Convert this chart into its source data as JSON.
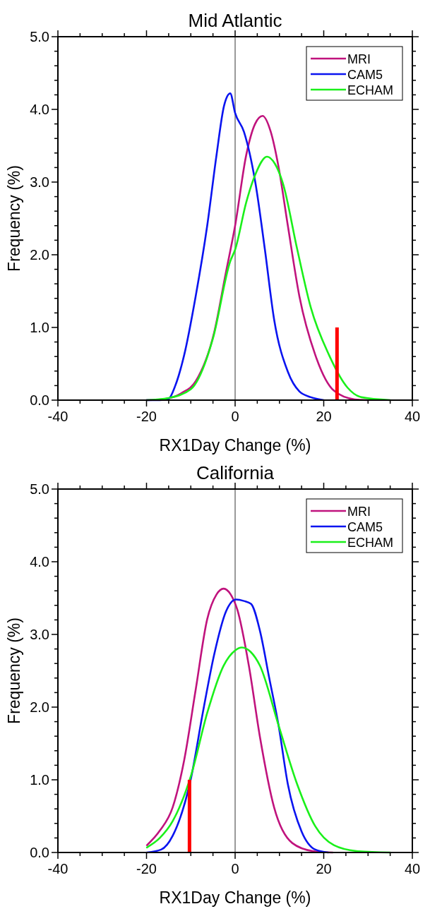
{
  "chart_data": [
    {
      "type": "line",
      "title": "Mid Atlantic",
      "xlabel": "RX1Day Change (%)",
      "ylabel": "Frequency (%)",
      "xlim": [
        -40,
        40
      ],
      "ylim": [
        0,
        5
      ],
      "xticks": [
        -40,
        {
          "value": -35,
          "label": null
        },
        {
          "value": -30,
          "label": null
        },
        {
          "value": -25,
          "label": null
        },
        -20,
        {
          "value": -15,
          "label": null
        },
        {
          "value": -10,
          "label": null
        },
        {
          "value": -5,
          "label": null
        },
        0,
        {
          "value": 5,
          "label": null
        },
        {
          "value": 10,
          "label": null
        },
        {
          "value": 15,
          "label": null
        },
        20,
        {
          "value": 25,
          "label": null
        },
        {
          "value": 30,
          "label": null
        },
        {
          "value": 35,
          "label": null
        },
        40
      ],
      "yticks": [
        {
          "value": 0,
          "label": "0.0"
        },
        {
          "value": 0.2,
          "label": null
        },
        {
          "value": 0.4,
          "label": null
        },
        {
          "value": 0.6,
          "label": null
        },
        {
          "value": 0.8,
          "label": null
        },
        {
          "value": 1,
          "label": "1.0"
        },
        {
          "value": 1.2,
          "label": null
        },
        {
          "value": 1.4,
          "label": null
        },
        {
          "value": 1.6,
          "label": null
        },
        {
          "value": 1.8,
          "label": null
        },
        {
          "value": 2,
          "label": "2.0"
        },
        {
          "value": 2.2,
          "label": null
        },
        {
          "value": 2.4,
          "label": null
        },
        {
          "value": 2.6,
          "label": null
        },
        {
          "value": 2.8,
          "label": null
        },
        {
          "value": 3,
          "label": "3.0"
        },
        {
          "value": 3.2,
          "label": null
        },
        {
          "value": 3.4,
          "label": null
        },
        {
          "value": 3.6,
          "label": null
        },
        {
          "value": 3.8,
          "label": null
        },
        {
          "value": 4,
          "label": "4.0"
        },
        {
          "value": 4.2,
          "label": null
        },
        {
          "value": 4.4,
          "label": null
        },
        {
          "value": 4.6,
          "label": null
        },
        {
          "value": 4.8,
          "label": null
        },
        {
          "value": 5,
          "label": "5.0"
        }
      ],
      "legend": "top right",
      "grid": false,
      "ref_lines": [
        {
          "axis": "x",
          "value": 0,
          "color": "#000000"
        }
      ],
      "series": [
        {
          "name": "MRI",
          "color": "#c0137d",
          "x": [
            -20,
            -15.5,
            -12,
            -8.9,
            -4.7,
            -2.1,
            0,
            2.5,
            4.5,
            6.2,
            8,
            9.8,
            11.9,
            14.5,
            18.1,
            22.3,
            27,
            30
          ],
          "values": [
            0,
            0.02,
            0.1,
            0.26,
            0.94,
            1.75,
            2.4,
            3.37,
            3.8,
            3.91,
            3.7,
            3.21,
            2.4,
            1.43,
            0.62,
            0.13,
            0.01,
            0
          ]
        },
        {
          "name": "CAM5",
          "color": "#0a14f0",
          "x": [
            -20,
            -17,
            -15,
            -13.5,
            -11.5,
            -8.9,
            -6.3,
            -4.2,
            -2.5,
            -1.1,
            0,
            2,
            4.6,
            6.7,
            8.8,
            11.9,
            14.5,
            17.1,
            20
          ],
          "values": [
            0,
            0,
            0.02,
            0.2,
            0.62,
            1.43,
            2.4,
            3.37,
            4.05,
            4.22,
            3.95,
            3.69,
            2.98,
            2.08,
            1.11,
            0.39,
            0.12,
            0.04,
            0
          ]
        },
        {
          "name": "ECHAM",
          "color": "#1af01a",
          "x": [
            -20,
            -15,
            -10,
            -5,
            -1.1,
            0,
            2.5,
            4.6,
            7.2,
            9,
            10.8,
            14,
            17.1,
            21.2,
            25.4,
            28.5,
            35
          ],
          "values": [
            0,
            0.03,
            0.15,
            0.85,
            1.91,
            2.07,
            2.72,
            3.11,
            3.35,
            3.25,
            2.98,
            2.08,
            1.27,
            0.62,
            0.17,
            0.04,
            0
          ]
        },
        {
          "type": "line",
          "color": "#ff0000",
          "x": [
            23,
            23
          ],
          "values": [
            0,
            1
          ]
        }
      ]
    },
    {
      "type": "line",
      "title": "California",
      "xlabel": "RX1Day Change (%)",
      "ylabel": "Frequency (%)",
      "xlim": [
        -40,
        40
      ],
      "ylim": [
        0,
        5
      ],
      "xticks": [
        -40,
        {
          "value": -35,
          "label": null
        },
        {
          "value": -30,
          "label": null
        },
        {
          "value": -25,
          "label": null
        },
        -20,
        {
          "value": -15,
          "label": null
        },
        {
          "value": -10,
          "label": null
        },
        {
          "value": -5,
          "label": null
        },
        0,
        {
          "value": 5,
          "label": null
        },
        {
          "value": 10,
          "label": null
        },
        {
          "value": 15,
          "label": null
        },
        20,
        {
          "value": 25,
          "label": null
        },
        {
          "value": 30,
          "label": null
        },
        {
          "value": 35,
          "label": null
        },
        40
      ],
      "yticks": [
        {
          "value": 0,
          "label": "0.0"
        },
        {
          "value": 0.2,
          "label": null
        },
        {
          "value": 0.4,
          "label": null
        },
        {
          "value": 0.6,
          "label": null
        },
        {
          "value": 0.8,
          "label": null
        },
        {
          "value": 1,
          "label": "1.0"
        },
        {
          "value": 1.2,
          "label": null
        },
        {
          "value": 1.4,
          "label": null
        },
        {
          "value": 1.6,
          "label": null
        },
        {
          "value": 1.8,
          "label": null
        },
        {
          "value": 2,
          "label": "2.0"
        },
        {
          "value": 2.2,
          "label": null
        },
        {
          "value": 2.4,
          "label": null
        },
        {
          "value": 2.6,
          "label": null
        },
        {
          "value": 2.8,
          "label": null
        },
        {
          "value": 3,
          "label": "3.0"
        },
        {
          "value": 3.2,
          "label": null
        },
        {
          "value": 3.4,
          "label": null
        },
        {
          "value": 3.6,
          "label": null
        },
        {
          "value": 3.8,
          "label": null
        },
        {
          "value": 4,
          "label": "4.0"
        },
        {
          "value": 4.2,
          "label": null
        },
        {
          "value": 4.4,
          "label": null
        },
        {
          "value": 4.6,
          "label": null
        },
        {
          "value": 4.8,
          "label": null
        },
        {
          "value": 5,
          "label": "5.0"
        }
      ],
      "legend": "top right",
      "grid": false,
      "ref_lines": [
        {
          "axis": "x",
          "value": 0,
          "color": "#000000"
        }
      ],
      "series": [
        {
          "name": "MRI",
          "color": "#c0137d",
          "x": [
            -19.9,
            -17,
            -14.1,
            -11.5,
            -8.9,
            -6.3,
            -4.2,
            -2.6,
            -1,
            0.5,
            3.1,
            5.6,
            8.8,
            12.9,
            17.5,
            22
          ],
          "values": [
            0.1,
            0.3,
            0.62,
            1.27,
            2.24,
            3.21,
            3.55,
            3.63,
            3.55,
            3.34,
            2.57,
            1.59,
            0.62,
            0.13,
            0.02,
            0
          ]
        },
        {
          "name": "CAM5",
          "color": "#0a14f0",
          "x": [
            -19.9,
            -16.7,
            -14.1,
            -9.9,
            -7.3,
            -4.7,
            -2.1,
            0.2,
            2,
            3.6,
            5.6,
            7.7,
            9.8,
            11.9,
            15,
            18.1,
            21
          ],
          "values": [
            0,
            0.04,
            0.23,
            1.04,
            1.92,
            2.73,
            3.31,
            3.48,
            3.46,
            3.42,
            3.05,
            2.4,
            1.75,
            0.94,
            0.29,
            0.04,
            0
          ]
        },
        {
          "name": "ECHAM",
          "color": "#1af01a",
          "x": [
            -19.9,
            -17,
            -14.1,
            -9.9,
            -6.3,
            -2.6,
            0,
            1.5,
            3.5,
            5.6,
            9.8,
            14,
            18.1,
            22.3,
            27.4,
            35
          ],
          "values": [
            0.07,
            0.2,
            0.43,
            1.07,
            1.92,
            2.57,
            2.78,
            2.82,
            2.76,
            2.57,
            1.75,
            0.94,
            0.36,
            0.1,
            0.02,
            0
          ]
        },
        {
          "type": "line",
          "color": "#ff0000",
          "x": [
            -10.3,
            -10.3
          ],
          "values": [
            0,
            1
          ]
        }
      ]
    }
  ]
}
